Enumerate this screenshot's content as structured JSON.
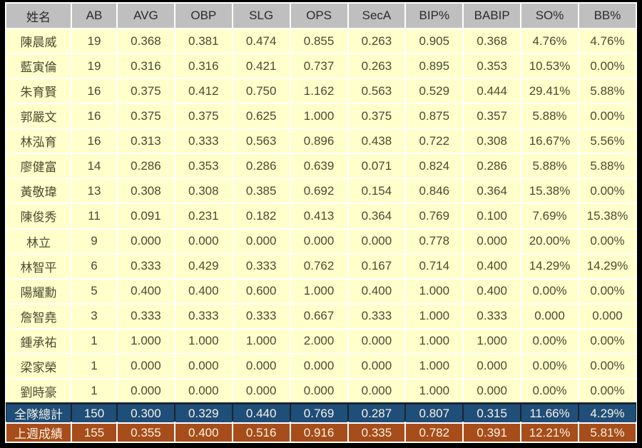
{
  "chart_data": {
    "type": "table",
    "title": "",
    "columns": [
      "姓名",
      "AB",
      "AVG",
      "OBP",
      "SLG",
      "OPS",
      "SecA",
      "BIP%",
      "BABIP",
      "SO%",
      "BB%"
    ],
    "rows": [
      [
        "陳晨威",
        "19",
        "0.368",
        "0.381",
        "0.474",
        "0.855",
        "0.263",
        "0.905",
        "0.368",
        "4.76%",
        "4.76%"
      ],
      [
        "藍寅倫",
        "19",
        "0.316",
        "0.316",
        "0.421",
        "0.737",
        "0.263",
        "0.895",
        "0.353",
        "10.53%",
        "0.00%"
      ],
      [
        "朱育賢",
        "16",
        "0.375",
        "0.412",
        "0.750",
        "1.162",
        "0.563",
        "0.529",
        "0.444",
        "29.41%",
        "5.88%"
      ],
      [
        "郭嚴文",
        "16",
        "0.375",
        "0.375",
        "0.625",
        "1.000",
        "0.375",
        "0.875",
        "0.357",
        "5.88%",
        "0.00%"
      ],
      [
        "林泓育",
        "16",
        "0.313",
        "0.333",
        "0.563",
        "0.896",
        "0.438",
        "0.722",
        "0.308",
        "16.67%",
        "5.56%"
      ],
      [
        "廖健富",
        "14",
        "0.286",
        "0.353",
        "0.286",
        "0.639",
        "0.071",
        "0.824",
        "0.286",
        "5.88%",
        "5.88%"
      ],
      [
        "黃敬瑋",
        "13",
        "0.308",
        "0.308",
        "0.385",
        "0.692",
        "0.154",
        "0.846",
        "0.364",
        "15.38%",
        "0.00%"
      ],
      [
        "陳俊秀",
        "11",
        "0.091",
        "0.231",
        "0.182",
        "0.413",
        "0.364",
        "0.769",
        "0.100",
        "7.69%",
        "15.38%"
      ],
      [
        "林立",
        "9",
        "0.000",
        "0.000",
        "0.000",
        "0.000",
        "0.000",
        "0.778",
        "0.000",
        "20.00%",
        "0.00%"
      ],
      [
        "林智平",
        "6",
        "0.333",
        "0.429",
        "0.333",
        "0.762",
        "0.167",
        "0.714",
        "0.400",
        "14.29%",
        "14.29%"
      ],
      [
        "陽耀勳",
        "5",
        "0.400",
        "0.400",
        "0.600",
        "1.000",
        "0.400",
        "1.000",
        "0.400",
        "0.00%",
        "0.00%"
      ],
      [
        "詹智堯",
        "3",
        "0.333",
        "0.333",
        "0.333",
        "0.667",
        "0.333",
        "1.000",
        "0.333",
        "0.000",
        "0.000"
      ],
      [
        "鍾承祐",
        "1",
        "1.000",
        "1.000",
        "1.000",
        "2.000",
        "0.000",
        "1.000",
        "1.000",
        "0.00%",
        "0.00%"
      ],
      [
        "梁家榮",
        "1",
        "0.000",
        "0.000",
        "0.000",
        "0.000",
        "0.000",
        "1.000",
        "0.000",
        "0.00%",
        "0.00%"
      ],
      [
        "劉時豪",
        "1",
        "0.000",
        "0.000",
        "0.000",
        "0.000",
        "0.000",
        "1.000",
        "0.000",
        "0.00%",
        "0.00%"
      ]
    ],
    "team_total": [
      "全隊總計",
      "150",
      "0.300",
      "0.329",
      "0.440",
      "0.769",
      "0.287",
      "0.807",
      "0.315",
      "11.66%",
      "4.29%"
    ],
    "last_week": [
      "上週成績",
      "155",
      "0.355",
      "0.400",
      "0.516",
      "0.916",
      "0.335",
      "0.782",
      "0.391",
      "12.21%",
      "5.81%"
    ],
    "colors": {
      "frame": "#000000",
      "grid": "#FFFFFF",
      "header_bg": "#BFBFBF",
      "header_text": "#2B2B2B",
      "row_bg": "#FFFFCC",
      "row_text": "#4B4B31",
      "total_bg": "#1F4E79",
      "total_text": "#F8F2E4",
      "total_separator": "#1A2530",
      "lastweek_bg": "#A64D1B",
      "lastweek_text": "#FBF3E0"
    },
    "layout": {
      "grid": "on",
      "header_position": "top",
      "footer_rows": [
        "team_total",
        "last_week"
      ]
    }
  }
}
